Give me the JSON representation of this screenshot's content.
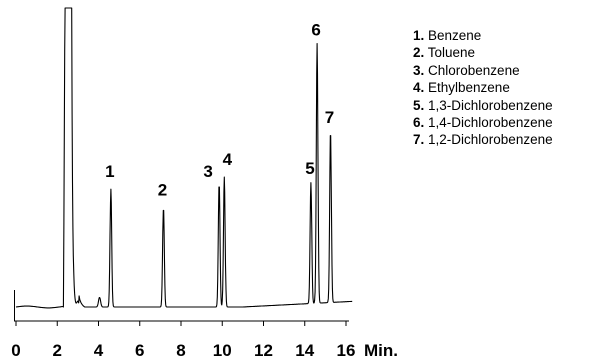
{
  "chart_data": {
    "type": "line",
    "title": "",
    "xlabel": "",
    "ylabel": "",
    "x_unit": "Min.",
    "xlim": [
      0,
      16
    ],
    "x_ticks": [
      0,
      2,
      4,
      6,
      8,
      10,
      12,
      14,
      16
    ],
    "grid": false,
    "legend_position": "top-right",
    "series": [
      {
        "solvent_peak": {
          "x": 2.45,
          "y": 100
        },
        "peaks": [
          {
            "label": "1",
            "x": 4.6,
            "y": 39
          },
          {
            "label": "2",
            "x": 7.15,
            "y": 33
          },
          {
            "label": "3",
            "x": 9.85,
            "y": 41
          },
          {
            "label": "4",
            "x": 10.1,
            "y": 43
          },
          {
            "label": "5",
            "x": 14.3,
            "y": 40
          },
          {
            "label": "6",
            "x": 14.6,
            "y": 86
          },
          {
            "label": "7",
            "x": 15.25,
            "y": 57
          }
        ]
      }
    ],
    "legend": [
      {
        "num": "1.",
        "name": "Benzene"
      },
      {
        "num": "2.",
        "name": "Toluene"
      },
      {
        "num": "3.",
        "name": "Chlorobenzene"
      },
      {
        "num": "4.",
        "name": "Ethylbenzene"
      },
      {
        "num": "5.",
        "name": "1,3-Dichlorobenzene"
      },
      {
        "num": "6.",
        "name": "1,4-Dichlorobenzene"
      },
      {
        "num": "7.",
        "name": "1,2-Dichlorobenzene"
      }
    ]
  }
}
